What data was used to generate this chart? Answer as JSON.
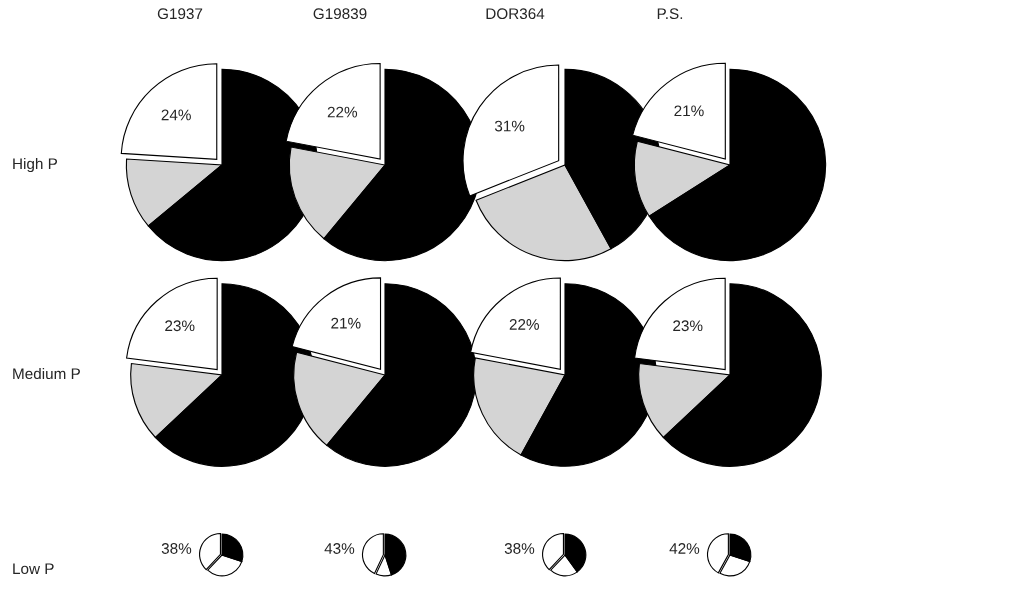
{
  "chart_data": [
    {
      "type": "pie",
      "title": "G1937",
      "ylabel": "High P",
      "categories": [
        null,
        null,
        null
      ],
      "values": [
        24,
        12,
        64
      ],
      "colors": [
        "#ffffff",
        "#d4d4d4",
        "#000000"
      ],
      "value_labels": [
        "24%",
        null,
        null
      ]
    },
    {
      "type": "pie",
      "title": "G19839",
      "categories": [
        null,
        null,
        null
      ],
      "values": [
        22,
        17,
        61
      ],
      "colors": [
        "#ffffff",
        "#d4d4d4",
        "#000000"
      ],
      "value_labels": [
        "22%",
        null,
        null
      ]
    },
    {
      "type": "pie",
      "title": "DOR364",
      "categories": [
        null,
        null,
        null
      ],
      "values": [
        31,
        27,
        42
      ],
      "colors": [
        "#ffffff",
        "#d4d4d4",
        "#000000"
      ],
      "value_labels": [
        "31%",
        null,
        null
      ]
    },
    {
      "type": "pie",
      "title": "P.S.",
      "categories": [
        null,
        null,
        null
      ],
      "values": [
        21,
        13,
        66
      ],
      "colors": [
        "#ffffff",
        "#d4d4d4",
        "#000000"
      ],
      "value_labels": [
        "21%",
        null,
        null
      ]
    },
    {
      "type": "pie",
      "ylabel": "Medium P",
      "categories": [
        null,
        null,
        null
      ],
      "values": [
        23,
        14,
        63
      ],
      "colors": [
        "#ffffff",
        "#d4d4d4",
        "#000000"
      ],
      "value_labels": [
        "23%",
        null,
        null
      ]
    },
    {
      "type": "pie",
      "categories": [
        null,
        null,
        null
      ],
      "values": [
        21,
        18,
        61
      ],
      "colors": [
        "#ffffff",
        "#d4d4d4",
        "#000000"
      ],
      "value_labels": [
        "21%",
        null,
        null
      ]
    },
    {
      "type": "pie",
      "categories": [
        null,
        null,
        null
      ],
      "values": [
        22,
        20,
        58
      ],
      "colors": [
        "#ffffff",
        "#d4d4d4",
        "#000000"
      ],
      "value_labels": [
        "22%",
        null,
        null
      ]
    },
    {
      "type": "pie",
      "categories": [
        null,
        null,
        null
      ],
      "values": [
        23,
        14,
        63
      ],
      "colors": [
        "#ffffff",
        "#d4d4d4",
        "#000000"
      ],
      "value_labels": [
        "23%",
        null,
        null
      ]
    },
    {
      "type": "pie",
      "ylabel": "Low P",
      "categories": [
        null,
        null,
        null
      ],
      "values": [
        38,
        32,
        30
      ],
      "colors": [
        "#ffffff",
        "#ffffff",
        "#000000"
      ],
      "value_labels": [
        "38%",
        null,
        null
      ]
    },
    {
      "type": "pie",
      "categories": [
        null,
        null,
        null
      ],
      "values": [
        43,
        12,
        45
      ],
      "colors": [
        "#ffffff",
        "#ffffff",
        "#000000"
      ],
      "value_labels": [
        "43%",
        null,
        null
      ]
    },
    {
      "type": "pie",
      "categories": [
        null,
        null,
        null
      ],
      "values": [
        38,
        22,
        40
      ],
      "colors": [
        "#ffffff",
        "#ffffff",
        "#000000"
      ],
      "value_labels": [
        "38%",
        null,
        null
      ]
    },
    {
      "type": "pie",
      "categories": [
        null,
        null,
        null
      ],
      "values": [
        42,
        28,
        30
      ],
      "colors": [
        "#ffffff",
        "#ffffff",
        "#000000"
      ],
      "value_labels": [
        "42%",
        null,
        null
      ]
    }
  ]
}
